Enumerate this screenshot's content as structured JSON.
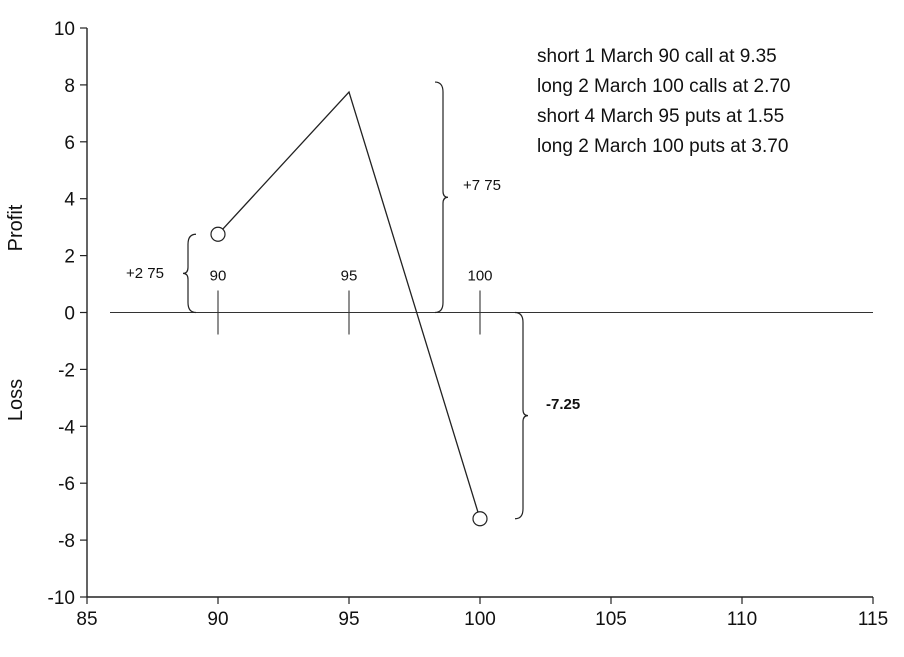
{
  "chart_data": {
    "type": "line",
    "xlim": [
      85,
      115
    ],
    "ylim": [
      -10,
      10
    ],
    "xticks": [
      85,
      90,
      95,
      100,
      105,
      110,
      115
    ],
    "yticks": [
      -10,
      -8,
      -6,
      -4,
      -2,
      0,
      2,
      4,
      6,
      8,
      10
    ],
    "ylabel_profit": "Profit",
    "ylabel_loss": "Loss",
    "series": [
      {
        "x": [
          90,
          95,
          100
        ],
        "y": [
          2.75,
          7.75,
          -7.25
        ]
      }
    ],
    "endpoints": [
      {
        "x": 90,
        "y": 2.75
      },
      {
        "x": 100,
        "y": -7.25
      }
    ],
    "zero_line_labels": [
      {
        "x": 90,
        "text": "90"
      },
      {
        "x": 95,
        "text": "95"
      },
      {
        "x": 100,
        "text": "100"
      }
    ],
    "legend_lines": [
      "short 1 March 90 call at 9.35",
      "long 2 March 100 calls at 2.70",
      "short 4 March 95 puts at 1.55",
      "long 2 March 100 puts at 3.70"
    ],
    "annotations": {
      "left": "+2 75",
      "middle": "+7 75",
      "right": "-7.25"
    },
    "grid": false
  }
}
